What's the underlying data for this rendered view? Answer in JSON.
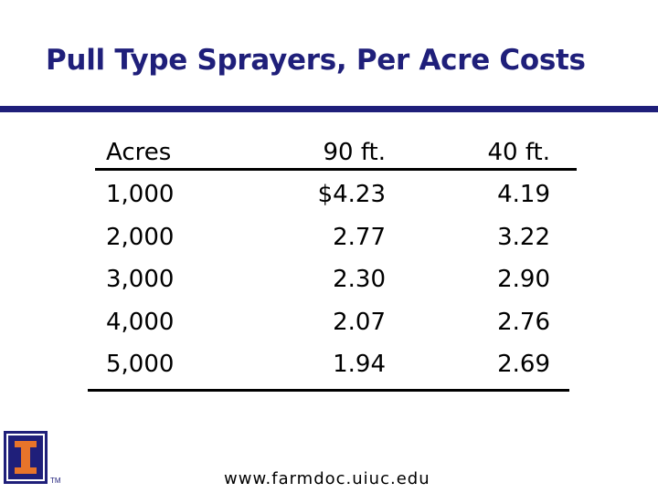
{
  "title": "Pull Type Sprayers, Per Acre Costs",
  "table": {
    "headers": [
      "Acres",
      "90 ft.",
      "40 ft."
    ],
    "rows": [
      [
        "1,000",
        "$4.23",
        "4.19"
      ],
      [
        "2,000",
        "2.77",
        "3.22"
      ],
      [
        "3,000",
        "2.30",
        "2.90"
      ],
      [
        "4,000",
        "2.07",
        "2.76"
      ],
      [
        "5,000",
        "1.94",
        "2.69"
      ]
    ]
  },
  "logo": {
    "icon": "university-block-i-logo",
    "mark": "TM"
  },
  "footer": "www.farmdoc.uiuc.edu",
  "colors": {
    "title": "#1f1f7a",
    "rule": "#1f1f7a",
    "logo_orange": "#e8742a"
  }
}
